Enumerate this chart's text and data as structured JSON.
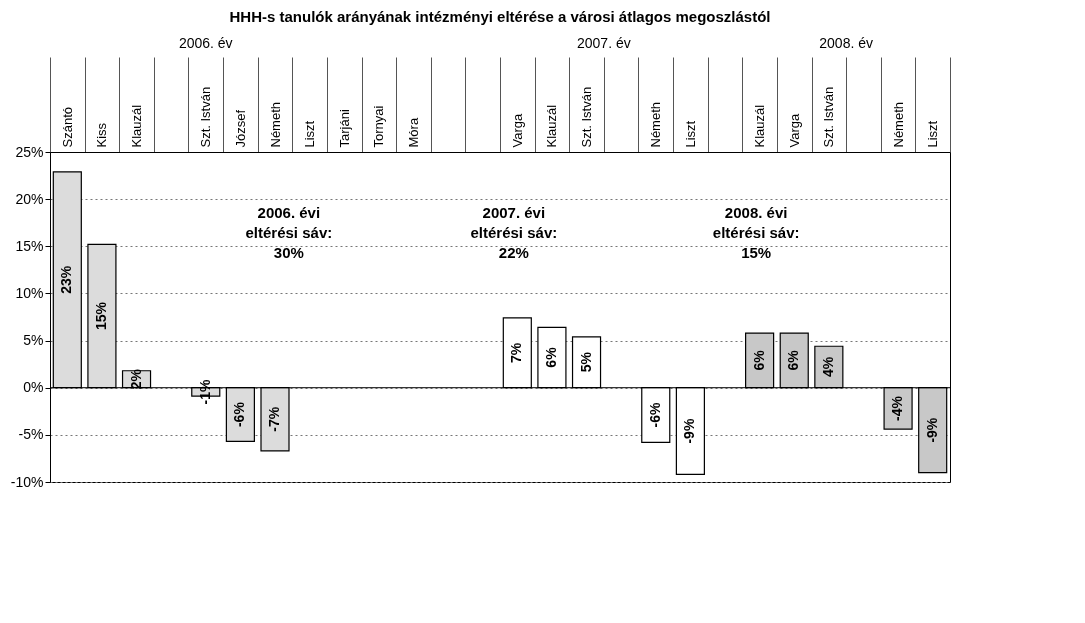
{
  "chart_data": {
    "type": "bar",
    "title": "HHH-s tanulók arányának intézményi eltérése a városi átlagos megoszlástól",
    "categories": [
      "Szántó",
      "Kiss",
      "Klauzál",
      null,
      "Szt. István",
      "József",
      "Németh",
      "Liszt",
      "Tarjáni",
      "Tornyai",
      "Móra",
      null,
      null,
      "Varga",
      "Klauzál",
      "Szt. István",
      null,
      "Németh",
      "Liszt",
      null,
      "Klauzál",
      "Varga",
      "Szt. István",
      null,
      "Németh",
      "Liszt"
    ],
    "values": [
      22.9,
      15.2,
      1.8,
      null,
      -0.9,
      -5.7,
      -6.7,
      null,
      null,
      null,
      null,
      null,
      null,
      7.4,
      6.4,
      5.4,
      null,
      -5.8,
      -9.2,
      null,
      5.8,
      5.8,
      4.4,
      null,
      -4.4,
      -9.0
    ],
    "value_labels": [
      "23%",
      "15%",
      "2%",
      null,
      "-1%",
      "-6%",
      "-7%",
      null,
      null,
      null,
      null,
      null,
      null,
      "7%",
      "6%",
      "5%",
      null,
      "-6%",
      "-9%",
      null,
      "6%",
      "6%",
      "4%",
      null,
      "-4%",
      "-9%"
    ],
    "colors": [
      "#dcdcdc",
      "#dcdcdc",
      "#dcdcdc",
      null,
      "#dcdcdc",
      "#dcdcdc",
      "#dcdcdc",
      null,
      null,
      null,
      null,
      null,
      null,
      "#ffffff",
      "#ffffff",
      "#ffffff",
      null,
      "#ffffff",
      "#ffffff",
      null,
      "#c8c8c8",
      "#c8c8c8",
      "#c8c8c8",
      null,
      "#c8c8c8",
      "#c8c8c8"
    ],
    "ylim": [
      -10,
      25
    ],
    "yticks": [
      {
        "value": -10,
        "label": "-10%"
      },
      {
        "value": -5,
        "label": "-5%"
      },
      {
        "value": 0,
        "label": "0%"
      },
      {
        "value": 5,
        "label": "5%"
      },
      {
        "value": 10,
        "label": "10%"
      },
      {
        "value": 15,
        "label": "15%"
      },
      {
        "value": 20,
        "label": "20%"
      },
      {
        "value": 25,
        "label": "25%"
      }
    ],
    "grid": "y",
    "annotations": [
      "2006. év",
      "2007. év",
      "2008. év",
      "2006. évi\neltérési sáv:\n30%",
      "2007. évi\neltérési sáv:\n22%",
      "2008. évi\neltérési sáv:\n15%"
    ]
  }
}
